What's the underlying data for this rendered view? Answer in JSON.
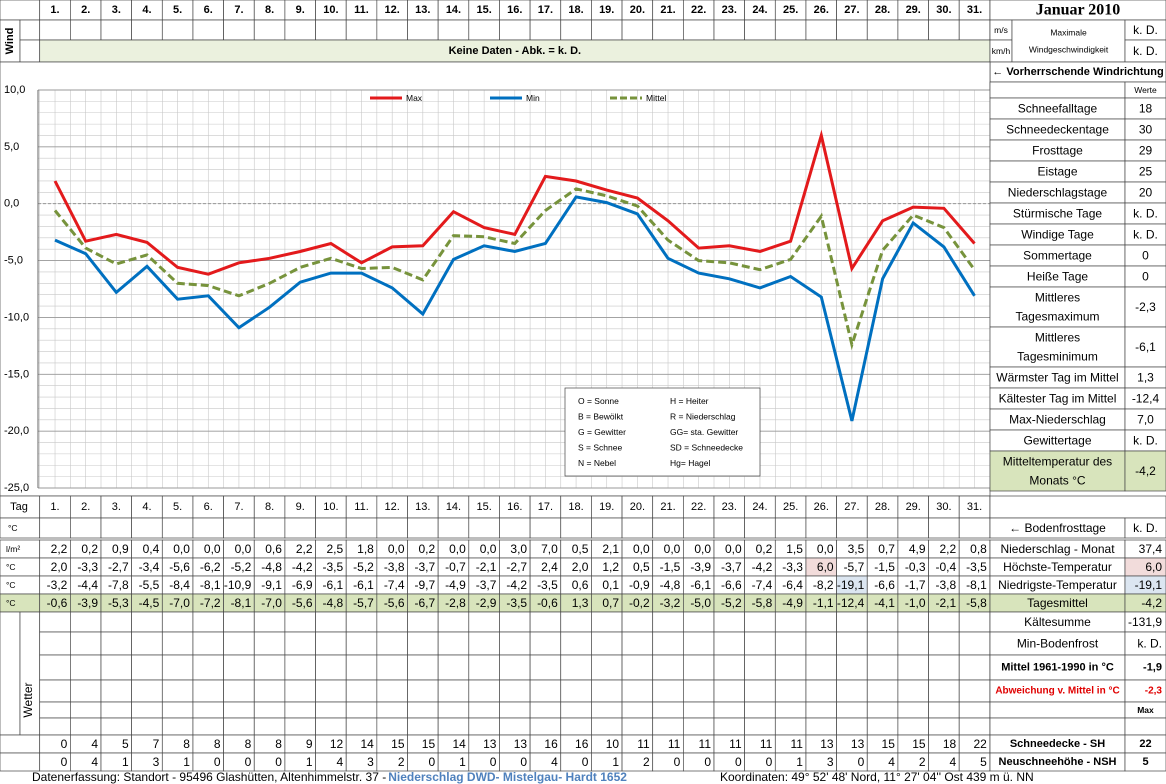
{
  "header": {
    "title": "Januar 2010"
  },
  "wind": {
    "label": "Wind",
    "unit_ms": "m/s",
    "unit_kmh": "km/h",
    "max_label": [
      "Maximale",
      "Windgeschwindigkeit"
    ],
    "max_ms": "k. D.",
    "max_kmh": "k. D.",
    "notice": "Keine Daten - Abk. = k. D.",
    "direction": "← Vorherrschende Windrichtung"
  },
  "chart_data": {
    "type": "line",
    "categories": [
      "1.",
      "2.",
      "3.",
      "4.",
      "5.",
      "6.",
      "7.",
      "8.",
      "9.",
      "10.",
      "11.",
      "12.",
      "13.",
      "14.",
      "15.",
      "16.",
      "17.",
      "18.",
      "19.",
      "20.",
      "21.",
      "22.",
      "23.",
      "24.",
      "25.",
      "26.",
      "27.",
      "28.",
      "29.",
      "30.",
      "31."
    ],
    "series": [
      {
        "name": "Max",
        "color": "#e31a1c",
        "values": [
          2.0,
          -3.3,
          -2.7,
          -3.4,
          -5.6,
          -6.2,
          -5.2,
          -4.8,
          -4.2,
          -3.5,
          -5.2,
          -3.8,
          -3.7,
          -0.7,
          -2.1,
          -2.7,
          2.4,
          2.0,
          1.2,
          0.5,
          -1.5,
          -3.9,
          -3.7,
          -4.2,
          -3.3,
          6.0,
          -5.7,
          -1.5,
          -0.3,
          -0.4,
          -3.5
        ]
      },
      {
        "name": "Min",
        "color": "#0070c0",
        "values": [
          -3.2,
          -4.4,
          -7.8,
          -5.5,
          -8.4,
          -8.1,
          -10.9,
          -9.1,
          -6.9,
          -6.1,
          -6.1,
          -7.4,
          -9.7,
          -4.9,
          -3.7,
          -4.2,
          -3.5,
          0.6,
          0.1,
          -0.9,
          -4.8,
          -6.1,
          -6.6,
          -7.4,
          -6.4,
          -8.2,
          -19.1,
          -6.6,
          -1.7,
          -3.8,
          -8.1
        ]
      },
      {
        "name": "Mittel",
        "color": "#77933c",
        "dashed": true,
        "values": [
          -0.6,
          -3.9,
          -5.3,
          -4.5,
          -7.0,
          -7.2,
          -8.1,
          -7.0,
          -5.6,
          -4.8,
          -5.7,
          -5.6,
          -6.7,
          -2.8,
          -2.9,
          -3.5,
          -0.6,
          1.3,
          0.7,
          -0.2,
          -3.2,
          -5.0,
          -5.2,
          -5.8,
          -4.9,
          -1.1,
          -12.4,
          -4.1,
          -1.0,
          -2.1,
          -5.8
        ]
      }
    ],
    "ylim": [
      -25,
      10
    ],
    "yticks": [
      {
        "value": 10,
        "label": "10,0"
      },
      {
        "value": 5,
        "label": "5,0"
      },
      {
        "value": 0,
        "label": "0,0"
      },
      {
        "value": -5,
        "label": "-5,0"
      },
      {
        "value": -10,
        "label": "-10,0"
      },
      {
        "value": -15,
        "label": "-15,0"
      },
      {
        "value": -20,
        "label": "-20,0"
      },
      {
        "value": -25,
        "label": "-25,0"
      }
    ],
    "grid": true,
    "annotations": [
      "O = Sonne",
      "H = Heiter",
      "B = Bewölkt",
      "R = Niederschlag",
      "G = Gewitter",
      "GG= sta. Gewitter",
      "S = Schnee",
      "SD = Schneedecke",
      "N = Nebel",
      "Hg= Hagel"
    ]
  },
  "stats": {
    "header": "Werte",
    "rows": [
      {
        "label": [
          "Schneefalltage"
        ],
        "value": "18"
      },
      {
        "label": [
          "Schneedeckentage"
        ],
        "value": "30"
      },
      {
        "label": [
          "Frosttage"
        ],
        "value": "29"
      },
      {
        "label": [
          "Eistage"
        ],
        "value": "25"
      },
      {
        "label": [
          "Niederschlagstage"
        ],
        "value": "20"
      },
      {
        "label": [
          "Stürmische Tage"
        ],
        "value": "k. D."
      },
      {
        "label": [
          "Windige Tage"
        ],
        "value": "k. D."
      },
      {
        "label": [
          "Sommertage"
        ],
        "value": "0"
      },
      {
        "label": [
          "Heiße Tage"
        ],
        "value": "0"
      },
      {
        "label": [
          "Mittleres",
          "Tagesmaximum"
        ],
        "value": "-2,3"
      },
      {
        "label": [
          "Mittleres",
          "Tagesminimum"
        ],
        "value": "-6,1"
      },
      {
        "label": [
          "Wärmster Tag im Mittel"
        ],
        "value": "1,3"
      },
      {
        "label": [
          "Kältester Tag im Mittel"
        ],
        "value": "-12,4"
      },
      {
        "label": [
          "Max-Niederschlag"
        ],
        "value": "7,0"
      },
      {
        "label": [
          "Gewittertage"
        ],
        "value": "k. D."
      },
      {
        "label": [
          "Mitteltemperatur des",
          "Monats °C"
        ],
        "value": "-4,2"
      }
    ]
  },
  "table": {
    "day_label": "Tag",
    "frost": {
      "unit": "°C",
      "label": "← Bodenfrosttage",
      "total": "k. D."
    },
    "rows": [
      {
        "unit": "l/m²",
        "label": "Niederschlag - Monat",
        "total": "37,4",
        "values": [
          "2,2",
          "0,2",
          "0,9",
          "0,4",
          "0,0",
          "0,0",
          "0,0",
          "0,6",
          "2,2",
          "2,5",
          "1,8",
          "0,0",
          "0,2",
          "0,0",
          "0,0",
          "3,0",
          "7,0",
          "0,5",
          "2,1",
          "0,0",
          "0,0",
          "0,0",
          "0,0",
          "0,2",
          "1,5",
          "0,0",
          "3,5",
          "0,7",
          "4,9",
          "2,2",
          "0,8"
        ]
      },
      {
        "unit": "°C",
        "label": "Höchste-Temperatur",
        "total": "6,0",
        "values": [
          "2,0",
          "-3,3",
          "-2,7",
          "-3,4",
          "-5,6",
          "-6,2",
          "-5,2",
          "-4,8",
          "-4,2",
          "-3,5",
          "-5,2",
          "-3,8",
          "-3,7",
          "-0,7",
          "-2,1",
          "-2,7",
          "2,4",
          "2,0",
          "1,2",
          "0,5",
          "-1,5",
          "-3,9",
          "-3,7",
          "-4,2",
          "-3,3",
          "6,0",
          "-5,7",
          "-1,5",
          "-0,3",
          "-0,4",
          "-3,5"
        ]
      },
      {
        "unit": "°C",
        "label": "Niedrigste-Temperatur",
        "total": "-19,1",
        "values": [
          "-3,2",
          "-4,4",
          "-7,8",
          "-5,5",
          "-8,4",
          "-8,1",
          "-10,9",
          "-9,1",
          "-6,9",
          "-6,1",
          "-6,1",
          "-7,4",
          "-9,7",
          "-4,9",
          "-3,7",
          "-4,2",
          "-3,5",
          "0,6",
          "0,1",
          "-0,9",
          "-4,8",
          "-6,1",
          "-6,6",
          "-7,4",
          "-6,4",
          "-8,2",
          "-19,1",
          "-6,6",
          "-1,7",
          "-3,8",
          "-8,1"
        ]
      },
      {
        "unit": "°C",
        "label": "Tagesmittel",
        "total": "-4,2",
        "values": [
          "-0,6",
          "-3,9",
          "-5,3",
          "-4,5",
          "-7,0",
          "-7,2",
          "-8,1",
          "-7,0",
          "-5,6",
          "-4,8",
          "-5,7",
          "-5,6",
          "-6,7",
          "-2,8",
          "-2,9",
          "-3,5",
          "-0,6",
          "1,3",
          "0,7",
          "-0,2",
          "-3,2",
          "-5,0",
          "-5,2",
          "-5,8",
          "-4,9",
          "-1,1",
          "-12,4",
          "-4,1",
          "-1,0",
          "-2,1",
          "-5,8"
        ]
      }
    ],
    "summary": [
      {
        "label": "Kältesumme",
        "value": "-131,9"
      },
      {
        "label": "Min-Bodenfrost",
        "value": "k. D."
      },
      {
        "label": "Mittel 1961-1990 in °C",
        "value": "-1,9"
      },
      {
        "label": "Abweichung v. Mittel in °C",
        "value": "-2,3"
      }
    ],
    "max_header": "Max",
    "weather_label": "Wetter",
    "snow": [
      {
        "label": "Schneedecke -  SH",
        "total": "22",
        "values": [
          "0",
          "4",
          "5",
          "7",
          "8",
          "8",
          "8",
          "8",
          "9",
          "12",
          "14",
          "15",
          "15",
          "14",
          "13",
          "13",
          "16",
          "16",
          "10",
          "11",
          "11",
          "11",
          "11",
          "11",
          "11",
          "13",
          "13",
          "15",
          "15",
          "18",
          "22"
        ]
      },
      {
        "label": "Neuschneehöhe - NSH",
        "total": "5",
        "values": [
          "0",
          "4",
          "1",
          "3",
          "1",
          "0",
          "0",
          "0",
          "1",
          "4",
          "3",
          "2",
          "0",
          "1",
          "0",
          "0",
          "4",
          "0",
          "1",
          "2",
          "0",
          "0",
          "0",
          "0",
          "1",
          "3",
          "0",
          "4",
          "2",
          "4",
          "5"
        ]
      }
    ]
  },
  "footer": {
    "source": "Datenerfassung:  Standort -  95496  Glashütten, Altenhimmelstr. 37 - ",
    "precip_source": "Niederschlag DWD- Mistelgau- Hardt 1652",
    "coordinates": "Koordinaten:  49° 52' 48' Nord,   11° 27' 04'' Ost   439 m ü. NN"
  }
}
